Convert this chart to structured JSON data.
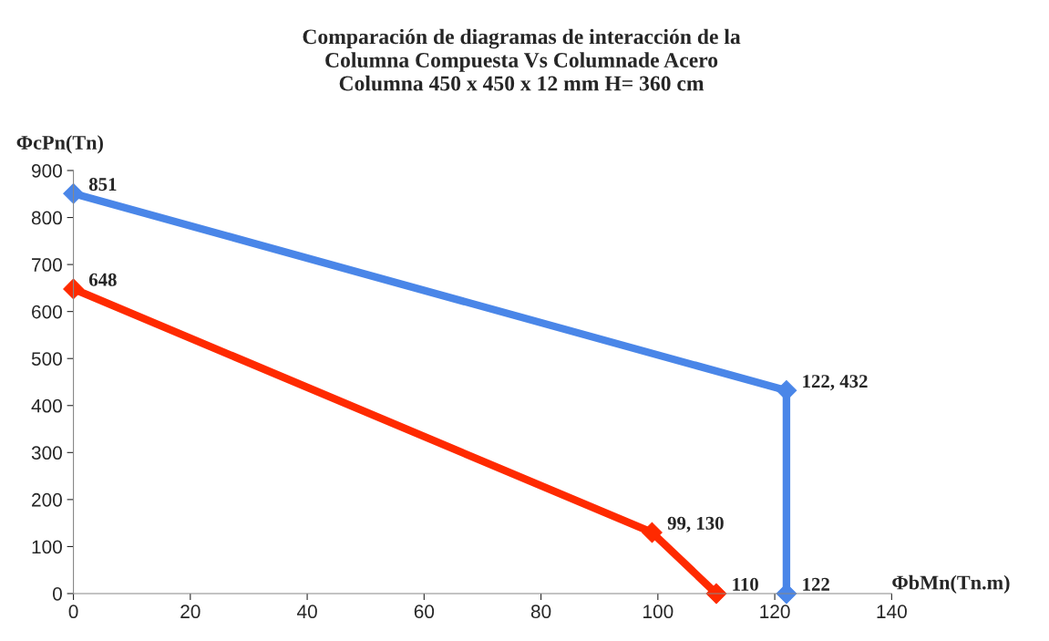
{
  "chart_data": {
    "type": "line",
    "title": "Comparación de diagramas de interacción de la\nColumna Compuesta Vs Columnade Acero\nColumna 450 x 450 x 12 mm H= 360 cm",
    "xlabel": "ΦbMn(Tn.m)",
    "ylabel": "ΦcPn(Tn)",
    "series": [
      {
        "color": "#4a86e8",
        "x": [
          0,
          122,
          122
        ],
        "values": [
          851,
          432,
          0
        ]
      },
      {
        "color": "#ff2a00",
        "x": [
          0,
          99,
          110
        ],
        "values": [
          648,
          130,
          0
        ]
      }
    ],
    "annotations": [
      {
        "text": "851",
        "x": 0,
        "y": 851
      },
      {
        "text": "122, 432",
        "x": 122,
        "y": 432
      },
      {
        "text": "122",
        "x": 122,
        "y": 0
      },
      {
        "text": "648",
        "x": 0,
        "y": 648
      },
      {
        "text": "99, 130",
        "x": 99,
        "y": 130
      },
      {
        "text": "110",
        "x": 110,
        "y": 0
      }
    ],
    "xlim": [
      0,
      140
    ],
    "xticks": [
      0,
      20,
      40,
      60,
      80,
      100,
      120,
      140
    ],
    "ylim": [
      0,
      900
    ],
    "yticks": [
      0,
      100,
      200,
      300,
      400,
      500,
      600,
      700,
      800,
      900
    ],
    "grid": false,
    "legend": false,
    "marker": "diamond",
    "line_style": "solid"
  }
}
